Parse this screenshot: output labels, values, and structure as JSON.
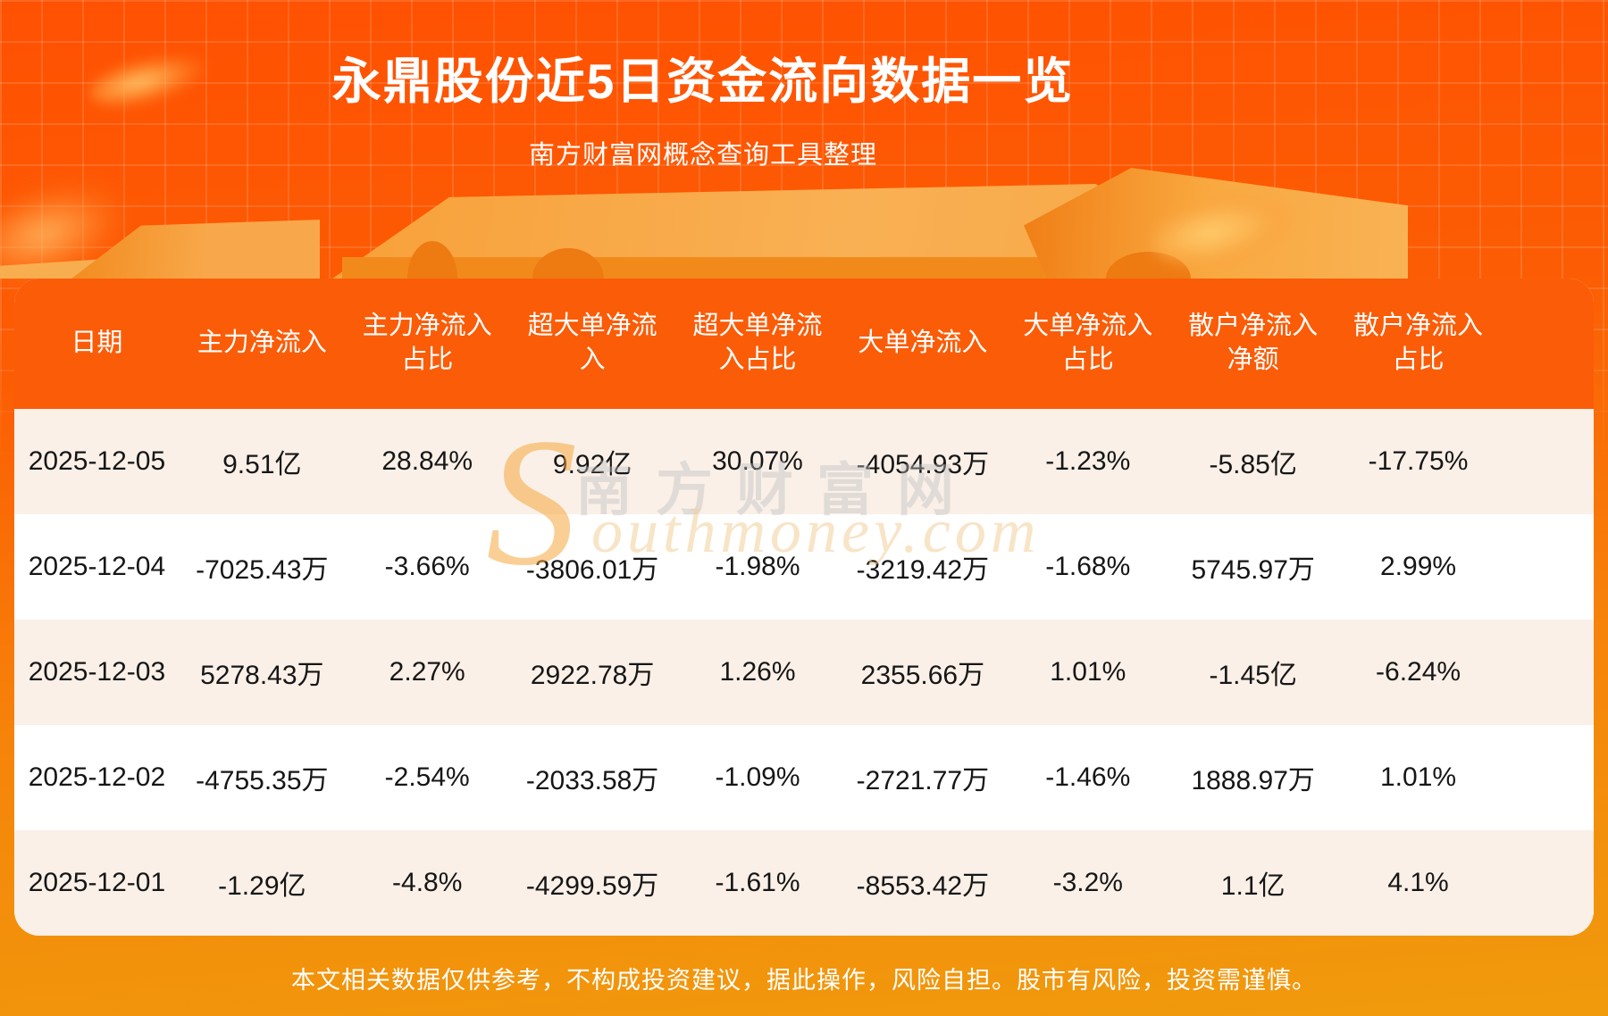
{
  "header": {
    "title": "永鼎股份近5日资金流向数据一览",
    "subtitle": "南方财富网概念查询工具整理"
  },
  "chart_data": {
    "type": "table",
    "title": "永鼎股份近5日资金流向数据一览",
    "subtitle": "南方财富网概念查询工具整理",
    "columns": [
      "日期",
      "主力净流入",
      "主力净流入占比",
      "超大单净流入",
      "超大单净流入占比",
      "大单净流入",
      "大单净流入占比",
      "散户净流入净额",
      "散户净流入占比"
    ],
    "rows": [
      [
        "2025-12-05",
        "9.51亿",
        "28.84%",
        "9.92亿",
        "30.07%",
        "-4054.93万",
        "-1.23%",
        "-5.85亿",
        "-17.75%"
      ],
      [
        "2025-12-04",
        "-7025.43万",
        "-3.66%",
        "-3806.01万",
        "-1.98%",
        "-3219.42万",
        "-1.68%",
        "5745.97万",
        "2.99%"
      ],
      [
        "2025-12-03",
        "5278.43万",
        "2.27%",
        "2922.78万",
        "1.26%",
        "2355.66万",
        "1.01%",
        "-1.45亿",
        "-6.24%"
      ],
      [
        "2025-12-02",
        "-4755.35万",
        "-2.54%",
        "-2033.58万",
        "-1.09%",
        "-2721.77万",
        "-1.46%",
        "1888.97万",
        "1.01%"
      ],
      [
        "2025-12-01",
        "-1.29亿",
        "-4.8%",
        "-4299.59万",
        "-1.61%",
        "-8553.42万",
        "-3.2%",
        "1.1亿",
        "4.1%"
      ]
    ]
  },
  "table": {
    "column_display": [
      "日期",
      "主力净流入",
      "主力净流入\n占比",
      "超大单净流\n入",
      "超大单净流\n入占比",
      "大单净流入",
      "大单净流入\n占比",
      "散户净流入\n净额",
      "散户净流入\n占比"
    ]
  },
  "watermark": {
    "brand_initial": "S",
    "brand_cn": "南方财富网",
    "brand_rest": "outhmoney.com"
  },
  "footer": {
    "disclaimer": "本文相关数据仅供参考，不构成投资建议，据此操作，风险自担。股市有风险，投资需谨慎。"
  },
  "colors": {
    "background_top": "#ff5102",
    "background_bottom": "#f09b0c",
    "table_header_background": "#fb5c07",
    "row_alt_background": "#faf0e8",
    "row_background": "#ffffff",
    "cell_text": "#161616",
    "header_text": "#ffffff"
  }
}
